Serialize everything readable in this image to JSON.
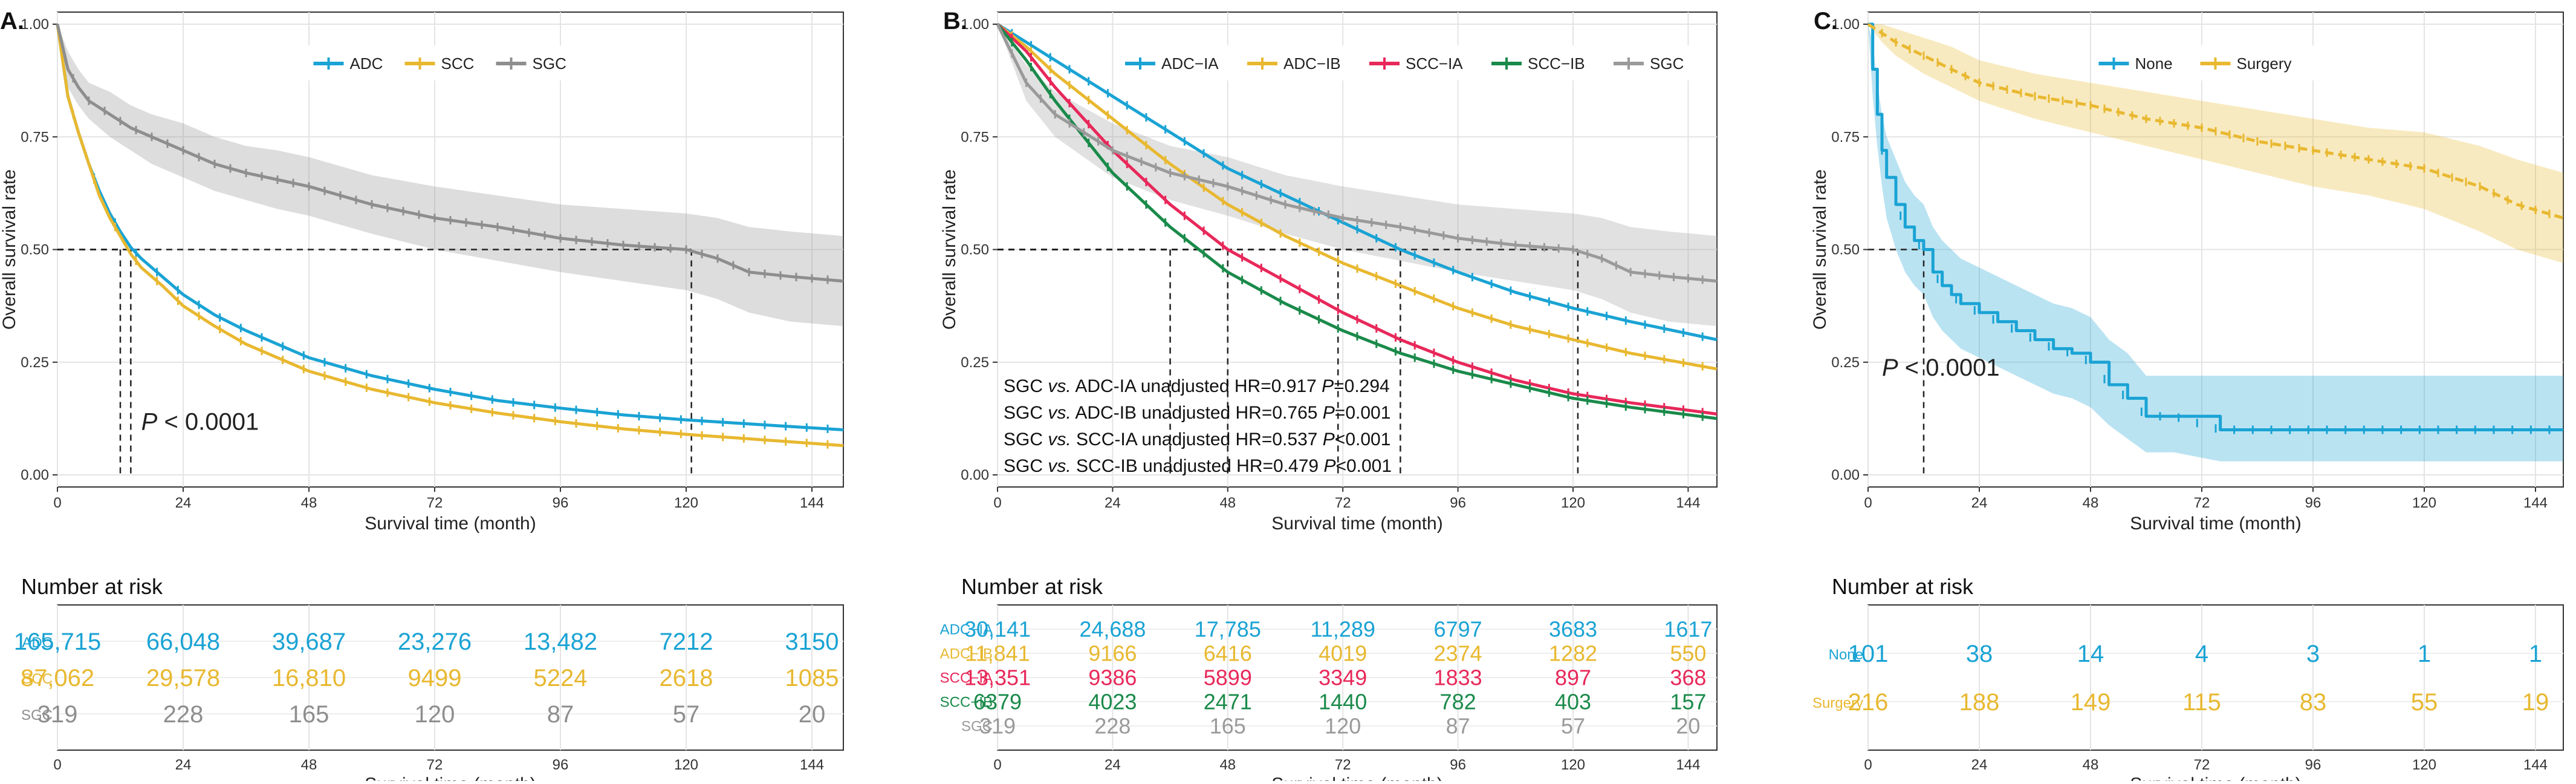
{
  "colors": {
    "adc": "#1aa3d4",
    "scc": "#e8b830",
    "sgc": "#8e8e8e",
    "adc_ia": "#1aa3d4",
    "adc_ib": "#e8b830",
    "scc_ia": "#e8285a",
    "scc_ib": "#1a8a4a",
    "sgc_b": "#9a9a9a",
    "none": "#1aa3d4",
    "surgery": "#e8b830"
  },
  "chart_data": [
    {
      "type": "line",
      "panel_label": "A.",
      "title": "",
      "xlabel": "Survival time (month)",
      "ylabel": "Overall survival rate",
      "xlim": [
        0,
        150
      ],
      "ylim": [
        0,
        1
      ],
      "x_ticks": [
        "0",
        "24",
        "48",
        "72",
        "96",
        "120",
        "144"
      ],
      "y_ticks": [
        "0.00",
        "0.25",
        "0.50",
        "0.75",
        "1.00"
      ],
      "legend": [
        {
          "name": "ADC",
          "color_key": "adc"
        },
        {
          "name": "SCC",
          "color_key": "scc"
        },
        {
          "name": "SGC",
          "color_key": "sgc"
        }
      ],
      "legend_position": "top-center",
      "series": [
        {
          "name": "ADC",
          "color_key": "adc",
          "band": false,
          "x": [
            0,
            2,
            4,
            6,
            8,
            10,
            12,
            14,
            16,
            20,
            24,
            30,
            36,
            48,
            60,
            72,
            84,
            96,
            108,
            120,
            132,
            150
          ],
          "y": [
            1.0,
            0.84,
            0.76,
            0.69,
            0.63,
            0.58,
            0.54,
            0.505,
            0.48,
            0.44,
            0.4,
            0.355,
            0.32,
            0.26,
            0.22,
            0.19,
            0.165,
            0.148,
            0.133,
            0.122,
            0.113,
            0.1
          ]
        },
        {
          "name": "SCC",
          "color_key": "scc",
          "band": false,
          "x": [
            0,
            2,
            4,
            6,
            8,
            10,
            12,
            14,
            16,
            20,
            24,
            30,
            36,
            48,
            60,
            72,
            84,
            96,
            108,
            120,
            132,
            150
          ],
          "y": [
            1.0,
            0.84,
            0.76,
            0.69,
            0.62,
            0.57,
            0.53,
            0.49,
            0.46,
            0.42,
            0.375,
            0.33,
            0.29,
            0.23,
            0.19,
            0.16,
            0.137,
            0.118,
            0.102,
            0.09,
            0.08,
            0.065
          ]
        },
        {
          "name": "SGC",
          "color_key": "sgc",
          "band": true,
          "x": [
            0,
            2,
            4,
            6,
            10,
            14,
            18,
            24,
            30,
            36,
            42,
            48,
            60,
            72,
            84,
            96,
            108,
            120,
            126,
            132,
            140,
            150
          ],
          "y": [
            1.0,
            0.9,
            0.86,
            0.83,
            0.8,
            0.77,
            0.75,
            0.72,
            0.69,
            0.67,
            0.655,
            0.64,
            0.6,
            0.57,
            0.55,
            0.525,
            0.51,
            0.5,
            0.48,
            0.45,
            0.44,
            0.43
          ],
          "lo": [
            1.0,
            0.86,
            0.82,
            0.79,
            0.75,
            0.72,
            0.69,
            0.66,
            0.63,
            0.61,
            0.59,
            0.575,
            0.535,
            0.5,
            0.475,
            0.45,
            0.43,
            0.41,
            0.39,
            0.36,
            0.34,
            0.33
          ],
          "hi": [
            1.0,
            0.94,
            0.9,
            0.87,
            0.85,
            0.82,
            0.8,
            0.78,
            0.75,
            0.73,
            0.72,
            0.705,
            0.665,
            0.64,
            0.62,
            0.6,
            0.59,
            0.58,
            0.57,
            0.55,
            0.54,
            0.53
          ]
        }
      ],
      "median_x": [
        12,
        14,
        121
      ],
      "annotation": {
        "italic": "P",
        "rest": " < 0.0001",
        "x": 16,
        "y": 0.1
      },
      "risk_table": {
        "title": "Number at risk",
        "xlabel": "Survival time (month)",
        "rows": [
          {
            "label": "ADC",
            "color_key": "adc",
            "values": [
              "165,715",
              "66,048",
              "39,687",
              "23,276",
              "13,482",
              "7212",
              "3150"
            ]
          },
          {
            "label": "SCC",
            "color_key": "scc",
            "values": [
              "87,062",
              "29,578",
              "16,810",
              "9499",
              "5224",
              "2618",
              "1085"
            ]
          },
          {
            "label": "SGC",
            "color_key": "sgc",
            "values": [
              "319",
              "228",
              "165",
              "120",
              "87",
              "57",
              "20"
            ]
          }
        ]
      }
    },
    {
      "type": "line",
      "panel_label": "B.",
      "title": "",
      "xlabel": "Survival time (month)",
      "ylabel": "Overall survival rate",
      "xlim": [
        0,
        150
      ],
      "ylim": [
        0,
        1
      ],
      "x_ticks": [
        "0",
        "24",
        "48",
        "72",
        "96",
        "120",
        "144"
      ],
      "y_ticks": [
        "0.00",
        "0.25",
        "0.50",
        "0.75",
        "1.00"
      ],
      "legend": [
        {
          "name": "ADC−IA",
          "color_key": "adc_ia"
        },
        {
          "name": "ADC−IB",
          "color_key": "adc_ib"
        },
        {
          "name": "SCC−IA",
          "color_key": "scc_ia"
        },
        {
          "name": "SCC−IB",
          "color_key": "scc_ib"
        },
        {
          "name": "SGC",
          "color_key": "sgc_b"
        }
      ],
      "legend_position": "top-right",
      "series": [
        {
          "name": "ADC-IA",
          "color_key": "adc_ia",
          "band": false,
          "x": [
            0,
            6,
            12,
            24,
            36,
            48,
            60,
            72,
            84,
            96,
            108,
            120,
            132,
            150
          ],
          "y": [
            1.0,
            0.96,
            0.92,
            0.84,
            0.76,
            0.68,
            0.62,
            0.56,
            0.5,
            0.45,
            0.405,
            0.37,
            0.34,
            0.3
          ]
        },
        {
          "name": "ADC-IB",
          "color_key": "adc_ib",
          "band": false,
          "x": [
            0,
            6,
            12,
            24,
            36,
            48,
            60,
            72,
            84,
            96,
            108,
            120,
            132,
            150
          ],
          "y": [
            1.0,
            0.95,
            0.89,
            0.79,
            0.69,
            0.6,
            0.53,
            0.47,
            0.42,
            0.37,
            0.33,
            0.3,
            0.27,
            0.235
          ]
        },
        {
          "name": "SCC-IA",
          "color_key": "scc_ia",
          "band": false,
          "x": [
            0,
            6,
            12,
            24,
            36,
            48,
            60,
            72,
            84,
            96,
            108,
            120,
            132,
            150
          ],
          "y": [
            1.0,
            0.94,
            0.86,
            0.72,
            0.6,
            0.5,
            0.43,
            0.36,
            0.3,
            0.25,
            0.21,
            0.18,
            0.16,
            0.135
          ]
        },
        {
          "name": "SCC-IB",
          "color_key": "scc_ib",
          "band": false,
          "x": [
            0,
            6,
            12,
            24,
            36,
            48,
            60,
            72,
            84,
            96,
            108,
            120,
            132,
            150
          ],
          "y": [
            1.0,
            0.92,
            0.83,
            0.67,
            0.55,
            0.45,
            0.38,
            0.32,
            0.27,
            0.23,
            0.2,
            0.17,
            0.15,
            0.125
          ]
        },
        {
          "name": "SGC",
          "color_key": "sgc_b",
          "band": true,
          "x": [
            0,
            6,
            12,
            24,
            36,
            48,
            60,
            72,
            84,
            96,
            108,
            120,
            126,
            132,
            140,
            150
          ],
          "y": [
            1.0,
            0.87,
            0.8,
            0.72,
            0.67,
            0.64,
            0.6,
            0.57,
            0.55,
            0.525,
            0.51,
            0.5,
            0.48,
            0.45,
            0.44,
            0.43
          ],
          "lo": [
            1.0,
            0.83,
            0.75,
            0.66,
            0.61,
            0.575,
            0.535,
            0.5,
            0.475,
            0.45,
            0.43,
            0.41,
            0.39,
            0.36,
            0.34,
            0.33
          ],
          "hi": [
            1.0,
            0.91,
            0.85,
            0.78,
            0.73,
            0.705,
            0.665,
            0.64,
            0.62,
            0.6,
            0.59,
            0.58,
            0.57,
            0.55,
            0.54,
            0.53
          ]
        }
      ],
      "median_x": [
        36,
        48,
        71,
        84,
        121
      ],
      "hr_lines": [
        {
          "pre": "SGC ",
          "it": "vs.",
          "mid": " ADC-IA unadjusted HR=0.917 ",
          "p": "P",
          "post": "=0.294"
        },
        {
          "pre": "SGC ",
          "it": "vs.",
          "mid": " ADC-IB unadjusted HR=0.765 ",
          "p": "P",
          "post": "=0.001"
        },
        {
          "pre": "SGC ",
          "it": "vs.",
          "mid": " SCC-IA unadjusted HR=0.537 ",
          "p": "P",
          "post": "<0.001"
        },
        {
          "pre": "SGC ",
          "it": "vs.",
          "mid": " SCC-IB unadjusted HR=0.479 ",
          "p": "P",
          "post": "<0.001"
        }
      ],
      "risk_table": {
        "title": "Number at risk",
        "xlabel": "Survival time (month)",
        "rows": [
          {
            "label": "ADC−IA",
            "color_key": "adc_ia",
            "values": [
              "30,141",
              "24,688",
              "17,785",
              "11,289",
              "6797",
              "3683",
              "1617"
            ]
          },
          {
            "label": "ADC−IB",
            "color_key": "adc_ib",
            "values": [
              "11,841",
              "9166",
              "6416",
              "4019",
              "2374",
              "1282",
              "550"
            ]
          },
          {
            "label": "SCC−IA",
            "color_key": "scc_ia",
            "values": [
              "13,351",
              "9386",
              "5899",
              "3349",
              "1833",
              "897",
              "368"
            ]
          },
          {
            "label": "SCC−IB",
            "color_key": "scc_ib",
            "values": [
              "6379",
              "4023",
              "2471",
              "1440",
              "782",
              "403",
              "157"
            ]
          },
          {
            "label": "SGC",
            "color_key": "sgc_b",
            "values": [
              "319",
              "228",
              "165",
              "120",
              "87",
              "57",
              "20"
            ]
          }
        ]
      }
    },
    {
      "type": "line",
      "panel_label": "C.",
      "title": "",
      "xlabel": "Survival time (month)",
      "ylabel": "Overall survival rate",
      "xlim": [
        0,
        150
      ],
      "ylim": [
        0,
        1
      ],
      "x_ticks": [
        "0",
        "24",
        "48",
        "72",
        "96",
        "120",
        "144"
      ],
      "y_ticks": [
        "0.00",
        "0.25",
        "0.50",
        "0.75",
        "1.00"
      ],
      "legend": [
        {
          "name": "None",
          "color_key": "none"
        },
        {
          "name": "Surgery",
          "color_key": "surgery"
        }
      ],
      "legend_position": "top-center",
      "series": [
        {
          "name": "None",
          "color_key": "none",
          "band": true,
          "step": true,
          "x": [
            0,
            1,
            2,
            3,
            4,
            6,
            8,
            10,
            12,
            14,
            16,
            18,
            20,
            24,
            28,
            32,
            36,
            40,
            44,
            48,
            52,
            56,
            60,
            66,
            76,
            150
          ],
          "y": [
            1.0,
            0.9,
            0.8,
            0.72,
            0.66,
            0.6,
            0.55,
            0.52,
            0.5,
            0.45,
            0.42,
            0.4,
            0.38,
            0.36,
            0.34,
            0.32,
            0.3,
            0.28,
            0.27,
            0.25,
            0.2,
            0.17,
            0.13,
            0.13,
            0.1,
            0.1
          ],
          "lo": [
            1.0,
            0.84,
            0.73,
            0.64,
            0.57,
            0.5,
            0.45,
            0.42,
            0.4,
            0.35,
            0.32,
            0.3,
            0.28,
            0.26,
            0.24,
            0.22,
            0.2,
            0.18,
            0.17,
            0.15,
            0.11,
            0.08,
            0.05,
            0.05,
            0.03,
            0.03
          ],
          "hi": [
            1.0,
            0.96,
            0.87,
            0.8,
            0.75,
            0.7,
            0.65,
            0.62,
            0.6,
            0.55,
            0.52,
            0.5,
            0.48,
            0.46,
            0.44,
            0.42,
            0.4,
            0.38,
            0.37,
            0.35,
            0.3,
            0.27,
            0.22,
            0.22,
            0.22,
            0.22
          ]
        },
        {
          "name": "Surgery",
          "color_key": "surgery",
          "band": true,
          "dashed": true,
          "x": [
            0,
            3,
            6,
            12,
            18,
            24,
            36,
            48,
            60,
            72,
            84,
            96,
            108,
            120,
            132,
            140,
            150
          ],
          "y": [
            1.0,
            0.98,
            0.96,
            0.93,
            0.9,
            0.87,
            0.84,
            0.82,
            0.79,
            0.77,
            0.74,
            0.72,
            0.7,
            0.68,
            0.64,
            0.6,
            0.57
          ],
          "lo": [
            1.0,
            0.96,
            0.93,
            0.89,
            0.86,
            0.83,
            0.79,
            0.76,
            0.73,
            0.7,
            0.67,
            0.64,
            0.62,
            0.59,
            0.54,
            0.5,
            0.47
          ],
          "hi": [
            1.0,
            1.0,
            0.99,
            0.97,
            0.95,
            0.92,
            0.89,
            0.87,
            0.85,
            0.83,
            0.81,
            0.79,
            0.77,
            0.76,
            0.73,
            0.7,
            0.67
          ]
        }
      ],
      "median_x": [
        12
      ],
      "annotation": {
        "italic": "P",
        "rest": " < 0.0001",
        "x": 3,
        "y": 0.22
      },
      "risk_table": {
        "title": "Number at risk",
        "xlabel": "Survival time (month)",
        "rows": [
          {
            "label": "None",
            "color_key": "none",
            "values": [
              "101",
              "38",
              "14",
              "4",
              "3",
              "1",
              "1"
            ]
          },
          {
            "label": "Surgery",
            "color_key": "surgery",
            "values": [
              "216",
              "188",
              "149",
              "115",
              "83",
              "55",
              "19"
            ]
          }
        ]
      }
    }
  ]
}
